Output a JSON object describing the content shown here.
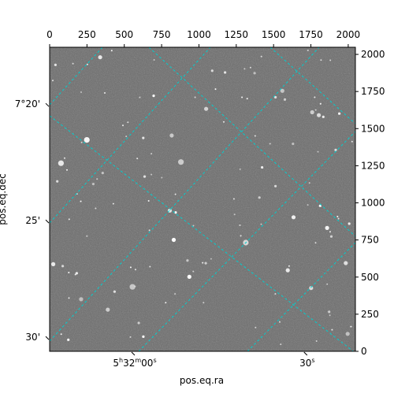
{
  "chart_data": {
    "type": "image",
    "xlabel": "pos.eq.ra",
    "ylabel": "pos.eq.dec",
    "pixel_axes": {
      "x_ticks": [
        0,
        250,
        500,
        750,
        1000,
        1250,
        1500,
        1750,
        2000
      ],
      "y_ticks": [
        0,
        250,
        500,
        750,
        1000,
        1250,
        1500,
        1750,
        2000
      ],
      "xlim": [
        0,
        2048
      ],
      "ylim": [
        0,
        2048
      ]
    },
    "world_axes": {
      "ra_ticks": [
        {
          "label_h": "5",
          "label_m": "32",
          "label_s": "00",
          "at_x": 570
        },
        {
          "label_h": "",
          "label_m": "",
          "label_s": "30",
          "at_x": 1725
        }
      ],
      "dec_ticks": [
        {
          "label": "7°20'",
          "at_y": 1665
        },
        {
          "label": "25'",
          "at_y": 880
        },
        {
          "label": "30'",
          "at_y": 95
        }
      ]
    },
    "grid": true,
    "grid_color": "#00cfcf",
    "image_background": "#6b6b6b"
  }
}
